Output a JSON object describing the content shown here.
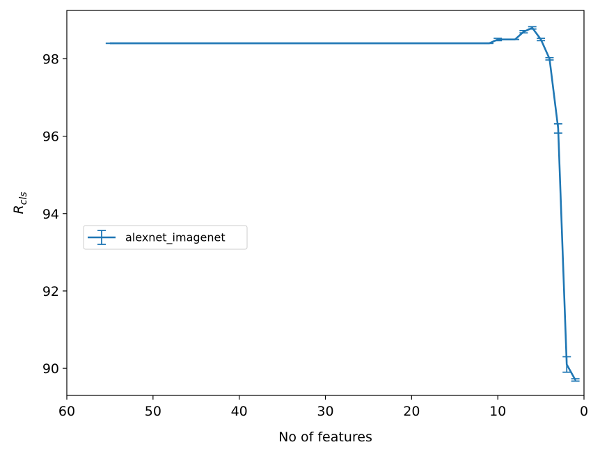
{
  "chart_data": {
    "type": "line",
    "title": "",
    "xlabel": "No of features",
    "ylabel_main": "R",
    "ylabel_sub": "cls",
    "xlim": [
      60,
      0
    ],
    "ylim": [
      89.3,
      99.25
    ],
    "xticks": [
      60,
      50,
      40,
      30,
      20,
      10,
      0
    ],
    "yticks": [
      90,
      92,
      94,
      96,
      98
    ],
    "grid": false,
    "legend_position": "center-left",
    "color": "#1f77b4",
    "series": [
      {
        "name": "alexnet_imagenet",
        "x": [
          55,
          11,
          10,
          9,
          8,
          7,
          6,
          5,
          4,
          3,
          2,
          1
        ],
        "y": [
          98.4,
          98.4,
          98.5,
          98.5,
          98.5,
          98.7,
          98.8,
          98.5,
          98.0,
          96.2,
          90.1,
          89.7
        ],
        "err": [
          0.0,
          0.0,
          0.03,
          0.0,
          0.0,
          0.03,
          0.03,
          0.03,
          0.03,
          0.12,
          0.2,
          0.03
        ]
      }
    ]
  }
}
